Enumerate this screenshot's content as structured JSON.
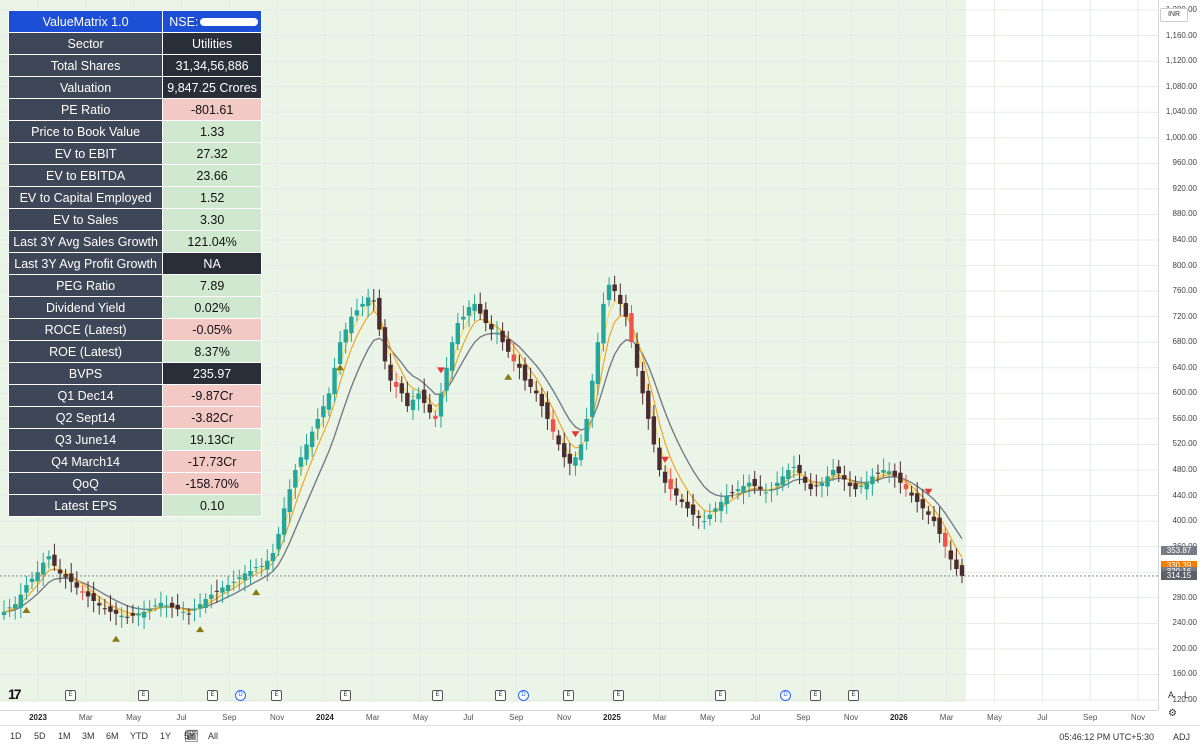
{
  "table": {
    "header_label": "ValueMatrix 1.0",
    "header_value": "NSE:",
    "rows": [
      {
        "label": "Sector",
        "value": "Utilities",
        "style": "dark"
      },
      {
        "label": "Total Shares",
        "value": "31,34,56,886",
        "style": "dark"
      },
      {
        "label": "Valuation",
        "value": "9,847.25 Crores",
        "style": "dark"
      },
      {
        "label": "PE Ratio",
        "value": "-801.61",
        "style": "red"
      },
      {
        "label": "Price to Book Value",
        "value": "1.33",
        "style": "green"
      },
      {
        "label": "EV to EBIT",
        "value": "27.32",
        "style": "green"
      },
      {
        "label": "EV to EBITDA",
        "value": "23.66",
        "style": "green"
      },
      {
        "label": "EV to Capital Employed",
        "value": "1.52",
        "style": "green"
      },
      {
        "label": "EV to Sales",
        "value": "3.30",
        "style": "green"
      },
      {
        "label": "Last 3Y Avg Sales Growth",
        "value": "121.04%",
        "style": "green"
      },
      {
        "label": "Last 3Y Avg Profit Growth",
        "value": "NA",
        "style": "dark"
      },
      {
        "label": "PEG Ratio",
        "value": "7.89",
        "style": "green"
      },
      {
        "label": "Dividend Yield",
        "value": "0.02%",
        "style": "green"
      },
      {
        "label": "ROCE (Latest)",
        "value": "-0.05%",
        "style": "red"
      },
      {
        "label": "ROE (Latest)",
        "value": "8.37%",
        "style": "green"
      },
      {
        "label": "BVPS",
        "value": "235.97",
        "style": "dark"
      },
      {
        "label": "Q1 Dec14",
        "value": "-9.87Cr",
        "style": "red"
      },
      {
        "label": "Q2 Sept14",
        "value": "-3.82Cr",
        "style": "red"
      },
      {
        "label": "Q3 June14",
        "value": "19.13Cr",
        "style": "green"
      },
      {
        "label": "Q4 March14",
        "value": "-17.73Cr",
        "style": "red"
      },
      {
        "label": "QoQ",
        "value": "-158.70%",
        "style": "red"
      },
      {
        "label": "Latest EPS",
        "value": "0.10",
        "style": "green"
      }
    ]
  },
  "price_scale": {
    "currency": "INR",
    "ticks": [
      "1,200.00",
      "1,160.00",
      "1,120.00",
      "1,080.00",
      "1,040.00",
      "1,000.00",
      "960.00",
      "920.00",
      "880.00",
      "840.00",
      "800.00",
      "760.00",
      "720.00",
      "680.00",
      "640.00",
      "600.00",
      "560.00",
      "520.00",
      "480.00",
      "440.00",
      "400.00",
      "360.00",
      "320.00",
      "280.00",
      "240.00",
      "200.00",
      "160.00",
      "120.00"
    ],
    "badges": [
      {
        "value": "353.87",
        "color": "#787b86"
      },
      {
        "value": "330.39",
        "color": "#f57c00"
      },
      {
        "value": "320.16",
        "color": "#787b86"
      },
      {
        "value": "314.15",
        "color": "#5d606b"
      }
    ]
  },
  "time_axis": [
    {
      "label": "2023",
      "year": true
    },
    {
      "label": "Mar"
    },
    {
      "label": "May"
    },
    {
      "label": "Jul"
    },
    {
      "label": "Sep"
    },
    {
      "label": "Nov"
    },
    {
      "label": "2024",
      "year": true
    },
    {
      "label": "Mar"
    },
    {
      "label": "May"
    },
    {
      "label": "Jul"
    },
    {
      "label": "Sep"
    },
    {
      "label": "Nov"
    },
    {
      "label": "2025",
      "year": true
    },
    {
      "label": "Mar"
    },
    {
      "label": "May"
    },
    {
      "label": "Jul"
    },
    {
      "label": "Sep"
    },
    {
      "label": "Nov"
    },
    {
      "label": "2026",
      "year": true
    },
    {
      "label": "Mar"
    },
    {
      "label": "May"
    },
    {
      "label": "Jul"
    },
    {
      "label": "Sep"
    },
    {
      "label": "Nov"
    }
  ],
  "ranges": [
    "1D",
    "5D",
    "1M",
    "3M",
    "6M",
    "YTD",
    "1Y",
    "5Y",
    "All"
  ],
  "clock": "05:46:12 PM UTC+5:30",
  "adj_label": "ADJ",
  "auto_label": "A",
  "log_label": "L",
  "event_markers": [
    "E",
    "E",
    "E",
    "D",
    "E",
    "E",
    "E",
    "E",
    "D",
    "E",
    "E",
    "E",
    "D",
    "E",
    "E"
  ],
  "colors": {
    "up": "#26a69a",
    "down": "#4a2b2f",
    "down_alt": "#ef5350",
    "ema_fast": "#f5a623",
    "ema_mid": "#ffd54f",
    "ema_slow": "#787b86",
    "shade": "#eaf5e7"
  },
  "chart_data": {
    "type": "candlestick",
    "timeframe": "weekly",
    "ylim": [
      120,
      1200
    ],
    "last_price": 314.15,
    "series": [
      {
        "name": "close",
        "values": [
          258,
          265,
          270,
          285,
          300,
          310,
          320,
          335,
          345,
          330,
          318,
          312,
          305,
          296,
          288,
          282,
          275,
          268,
          262,
          258,
          255,
          252,
          250,
          252,
          255,
          258,
          262,
          268,
          272,
          268,
          265,
          262,
          258,
          255,
          262,
          270,
          278,
          285,
          290,
          296,
          300,
          305,
          312,
          318,
          322,
          328,
          330,
          338,
          350,
          380,
          420,
          450,
          480,
          500,
          520,
          540,
          560,
          580,
          600,
          640,
          680,
          700,
          720,
          730,
          740,
          750,
          745,
          700,
          650,
          620,
          610,
          600,
          580,
          590,
          600,
          585,
          570,
          560,
          600,
          640,
          680,
          710,
          720,
          735,
          740,
          725,
          710,
          700,
          695,
          680,
          665,
          650,
          640,
          620,
          610,
          600,
          580,
          560,
          540,
          520,
          500,
          490,
          500,
          520,
          560,
          620,
          680,
          740,
          770,
          760,
          740,
          720,
          680,
          640,
          600,
          560,
          520,
          480,
          460,
          450,
          440,
          430,
          420,
          410,
          405,
          400,
          410,
          420,
          430,
          440,
          445,
          450,
          455,
          460,
          455,
          450,
          445,
          450,
          460,
          470,
          480,
          485,
          475,
          460,
          450,
          455,
          460,
          470,
          480,
          475,
          465,
          455,
          450,
          455,
          460,
          470,
          475,
          480,
          478,
          470,
          460,
          450,
          440,
          430,
          420,
          410,
          400,
          380,
          360,
          340,
          325,
          314
        ]
      }
    ]
  }
}
